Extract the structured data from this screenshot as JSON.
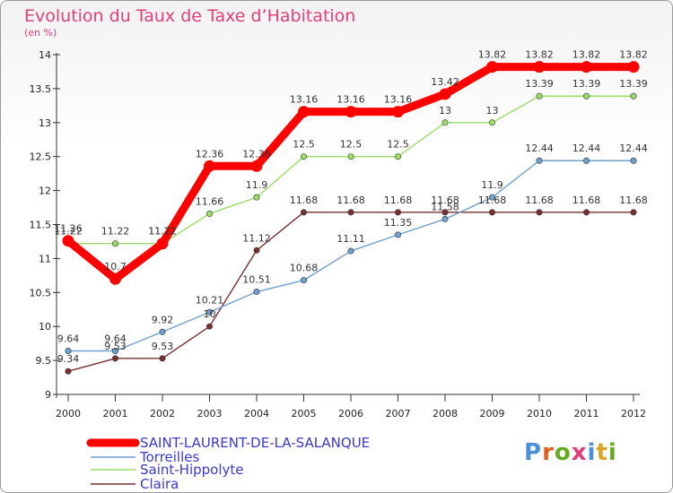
{
  "title": "Evolution du Taux de Taxe d’Habitation",
  "subtitle": "(en %)",
  "logo": {
    "text": "Proxiti",
    "letter_colors": [
      "#4a90d9",
      "#e06020",
      "#66aa22",
      "#e0407a",
      "#4a90d9",
      "#e0a020",
      "#66aa22"
    ]
  },
  "chart_data": {
    "type": "line",
    "title": "Evolution du Taux de Taxe d’Habitation",
    "subtitle": "(en %)",
    "x": [
      "2000",
      "2001",
      "2002",
      "2003",
      "2004",
      "2005",
      "2006",
      "2007",
      "2008",
      "2009",
      "2010",
      "2011",
      "2012"
    ],
    "ylim": [
      9,
      14
    ],
    "yticks": [
      "9",
      "9.5",
      "10",
      "10.5",
      "11",
      "11.5",
      "12",
      "12.5",
      "13",
      "13.5",
      "14"
    ],
    "grid": false,
    "legend_position": "bottom-left",
    "series": [
      {
        "name": "SAINT-LAURENT-DE-LA-SALANQUE",
        "color": "#ff0000",
        "values": [
          11.26,
          10.7,
          11.22,
          12.36,
          12.36,
          13.16,
          13.16,
          13.16,
          13.42,
          13.82,
          13.82,
          13.82,
          13.82
        ],
        "labels": [
          "11.26",
          "10.7",
          "11.22",
          "12.36",
          "12.36",
          "13.16",
          "13.16",
          "13.16",
          "13.42",
          "13.82",
          "13.82",
          "13.82",
          "13.82"
        ]
      },
      {
        "name": "Torreilles",
        "color": "#6fa0d0",
        "values": [
          9.64,
          9.64,
          9.92,
          10.21,
          10.51,
          10.68,
          11.11,
          11.35,
          11.58,
          11.9,
          12.44,
          12.44,
          12.44
        ],
        "labels": [
          "9.64",
          "9.64",
          "9.92",
          "10.21",
          "10.51",
          "10.68",
          "11.11",
          "11.35",
          "11.58",
          "11.9",
          "12.44",
          "12.44",
          "12.44"
        ]
      },
      {
        "name": "Saint-Hippolyte",
        "color": "#99dd66",
        "values": [
          11.22,
          11.22,
          11.22,
          11.66,
          11.9,
          12.5,
          12.5,
          12.5,
          13,
          13,
          13.39,
          13.39,
          13.39
        ],
        "labels": [
          "11.22",
          "11.22",
          "11.22",
          "11.66",
          "11.9",
          "12.5",
          "12.5",
          "12.5",
          "13",
          "13",
          "13.39",
          "13.39",
          "13.39"
        ]
      },
      {
        "name": "Claira",
        "color": "#7a3030",
        "values": [
          9.34,
          9.53,
          9.53,
          10,
          11.12,
          11.68,
          11.68,
          11.68,
          11.68,
          11.68,
          11.68,
          11.68,
          11.68
        ],
        "labels": [
          "9.34",
          "9.53",
          "9.53",
          "10",
          "11.12",
          "11.68",
          "11.68",
          "11.68",
          "11.68",
          "11.68",
          "11.68",
          "11.68",
          "11.68"
        ]
      }
    ]
  }
}
